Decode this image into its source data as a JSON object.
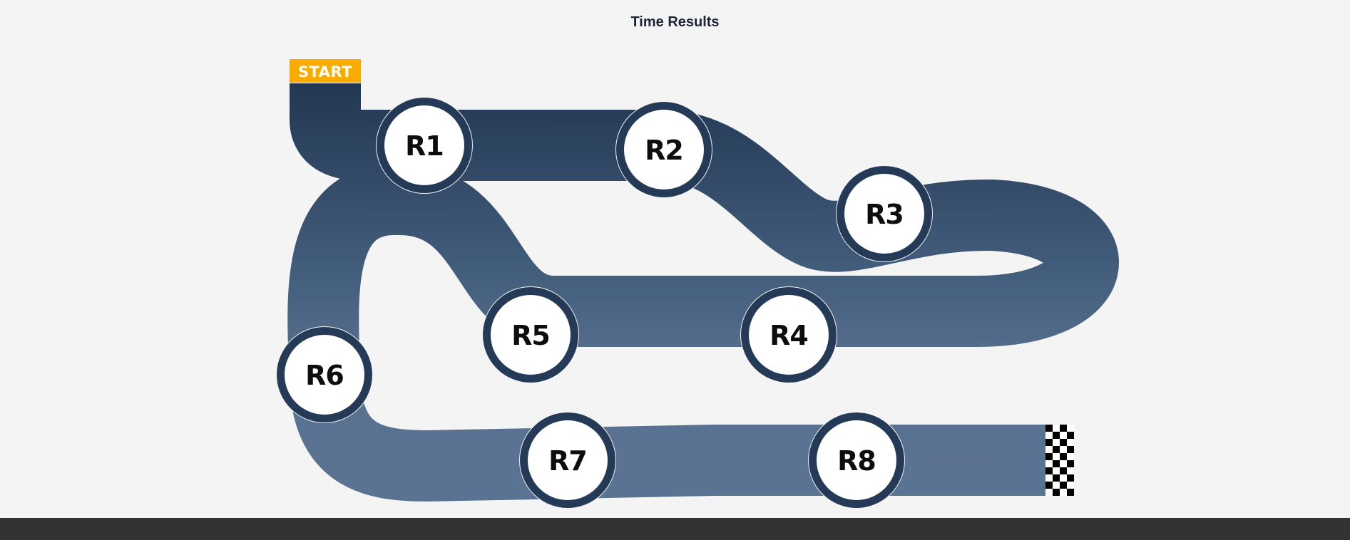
{
  "page": {
    "title": "Time Results"
  },
  "track": {
    "start_label": "START",
    "finish": "checkered-flag-icon",
    "colors": {
      "track_top": "#243a57",
      "track_bottom": "#5b7392",
      "node_ring": "#243a57",
      "node_fill": "#ffffff",
      "start_badge": "#f9ab00",
      "footer": "#333333"
    },
    "rounds": [
      {
        "id": "r1",
        "label": "R1"
      },
      {
        "id": "r2",
        "label": "R2"
      },
      {
        "id": "r3",
        "label": "R3"
      },
      {
        "id": "r4",
        "label": "R4"
      },
      {
        "id": "r5",
        "label": "R5"
      },
      {
        "id": "r6",
        "label": "R6"
      },
      {
        "id": "r7",
        "label": "R7"
      },
      {
        "id": "r8",
        "label": "R8"
      }
    ]
  }
}
